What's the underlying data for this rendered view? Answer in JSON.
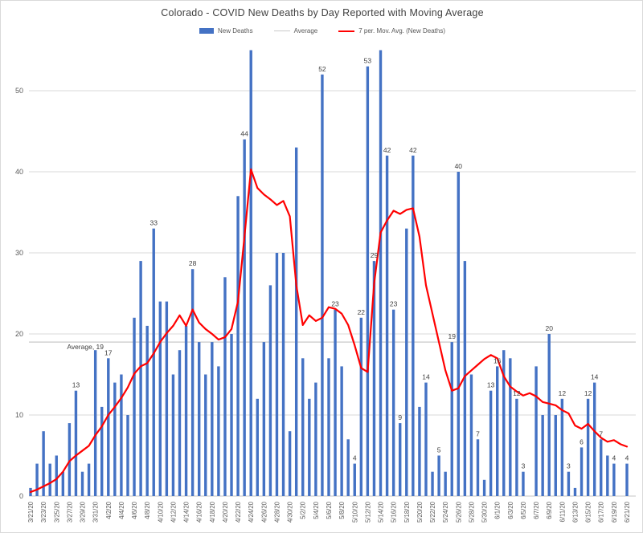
{
  "chart_data": {
    "type": "bar",
    "title": "Colorado - COVID New Deaths by Day Reported with Moving Average",
    "xlabel": "",
    "ylabel": "",
    "ylim": [
      0,
      55
    ],
    "yticks": [
      0,
      10,
      20,
      30,
      40,
      50
    ],
    "xtick_every": 2,
    "grid": true,
    "legend_position": "top",
    "average_value": 19,
    "average_label": "Average, 19",
    "categories": [
      "3/21/20",
      "3/22/20",
      "3/23/20",
      "3/24/20",
      "3/25/20",
      "3/26/20",
      "3/27/20",
      "3/28/20",
      "3/29/20",
      "3/30/20",
      "3/31/20",
      "4/1/20",
      "4/2/20",
      "4/3/20",
      "4/4/20",
      "4/5/20",
      "4/6/20",
      "4/7/20",
      "4/8/20",
      "4/9/20",
      "4/10/20",
      "4/11/20",
      "4/12/20",
      "4/13/20",
      "4/14/20",
      "4/15/20",
      "4/16/20",
      "4/17/20",
      "4/18/20",
      "4/19/20",
      "4/20/20",
      "4/21/20",
      "4/22/20",
      "4/23/20",
      "4/24/20",
      "4/25/20",
      "4/26/20",
      "4/27/20",
      "4/28/20",
      "4/29/20",
      "4/30/20",
      "5/1/20",
      "5/2/20",
      "5/3/20",
      "5/4/20",
      "5/5/20",
      "5/6/20",
      "5/7/20",
      "5/8/20",
      "5/9/20",
      "5/10/20",
      "5/11/20",
      "5/12/20",
      "5/13/20",
      "5/14/20",
      "5/15/20",
      "5/16/20",
      "5/17/20",
      "5/18/20",
      "5/19/20",
      "5/20/20",
      "5/21/20",
      "5/22/20",
      "5/23/20",
      "5/24/20",
      "5/25/20",
      "5/26/20",
      "5/27/20",
      "5/28/20",
      "5/29/20",
      "5/30/20",
      "5/31/20",
      "6/1/20",
      "6/2/20",
      "6/3/20",
      "6/4/20",
      "6/5/20",
      "6/6/20",
      "6/7/20",
      "6/8/20",
      "6/9/20",
      "6/10/20",
      "6/11/20",
      "6/12/20",
      "6/13/20",
      "6/14/20",
      "6/15/20",
      "6/16/20",
      "6/17/20",
      "6/18/20",
      "6/19/20",
      "6/20/20",
      "6/21/20"
    ],
    "series": [
      {
        "name": "New Deaths",
        "color": "#4472c4",
        "values": [
          1,
          4,
          8,
          4,
          5,
          3,
          9,
          13,
          3,
          4,
          18,
          11,
          17,
          14,
          15,
          10,
          22,
          29,
          21,
          33,
          24,
          24,
          15,
          18,
          21,
          28,
          19,
          15,
          19,
          16,
          27,
          20,
          37,
          44,
          55,
          12,
          19,
          26,
          30,
          30,
          8,
          43,
          17,
          12,
          14,
          52,
          17,
          23,
          16,
          7,
          4,
          22,
          53,
          29,
          55,
          42,
          23,
          9,
          33,
          42,
          11,
          14,
          3,
          5,
          3,
          19,
          40,
          29,
          15,
          7,
          2,
          13,
          16,
          18,
          17,
          12,
          3,
          0,
          16,
          10,
          20,
          10,
          12,
          3,
          1,
          6,
          12,
          14,
          7,
          5,
          4,
          0,
          4
        ],
        "data_labels": [
          "",
          "",
          "",
          "",
          "",
          "",
          "",
          "13",
          "",
          "",
          "",
          "",
          "17",
          "",
          "",
          "",
          "",
          "",
          "",
          "33",
          "",
          "",
          "",
          "",
          "",
          "28",
          "",
          "",
          "",
          "",
          "",
          "",
          "",
          "44",
          "",
          "",
          "",
          "",
          "",
          "",
          "",
          "",
          "",
          "",
          "",
          "52",
          "",
          "23",
          "",
          "",
          "4",
          "22",
          "53",
          "29",
          "",
          "42",
          "23",
          "9",
          "",
          "42",
          "",
          "14",
          "",
          "5",
          "",
          "19",
          "40",
          "",
          "",
          "7",
          "",
          "13",
          "16",
          "",
          "",
          "12",
          "3",
          "",
          "",
          "",
          "20",
          "",
          "12",
          "3",
          "",
          "6",
          "12",
          "14",
          "7",
          "",
          "4",
          "",
          "4"
        ]
      },
      {
        "name": "Average",
        "color": "#c9c9c9",
        "values": "constant 19"
      },
      {
        "name": "7 per. Mov. Avg. (New Deaths)",
        "color": "#ff0000",
        "values": [
          0.5,
          0.8,
          1.2,
          1.6,
          2.1,
          3.0,
          4.3,
          5.0,
          5.6,
          6.2,
          7.5,
          8.6,
          10.0,
          11.0,
          12.1,
          13.4,
          15.1,
          16.0,
          16.4,
          17.6,
          19.0,
          20.1,
          21.0,
          22.3,
          21.0,
          23.0,
          21.4,
          20.6,
          20.0,
          19.3,
          19.6,
          20.6,
          24.0,
          32.0,
          40.3,
          38.0,
          37.2,
          36.6,
          35.9,
          36.4,
          34.5,
          26.0,
          21.1,
          22.3,
          21.6,
          22.0,
          23.3,
          23.1,
          22.5,
          21.1,
          18.6,
          15.8,
          15.3,
          26.2,
          32.5,
          34.0,
          35.2,
          34.8,
          35.3,
          35.5,
          32.0,
          26.0,
          22.5,
          19.0,
          15.5,
          13.0,
          13.3,
          14.8,
          15.5,
          16.2,
          16.9,
          17.4,
          17.0,
          14.8,
          13.5,
          12.9,
          12.4,
          12.7,
          12.3,
          11.6,
          11.4,
          11.2,
          10.6,
          10.2,
          8.7,
          8.3,
          8.9,
          8.0,
          7.2,
          6.7,
          6.9,
          6.4,
          6.1
        ]
      }
    ]
  },
  "legend": {
    "new_deaths": "New Deaths",
    "average": "Average",
    "mov_avg": "7 per. Mov. Avg. (New Deaths)"
  },
  "colors": {
    "bar": "#4472c4",
    "moving_avg": "#ff0000",
    "average_line": "#c9c9c9",
    "gridline": "#d9d9d9",
    "axis_text": "#595959",
    "label_text": "#404040"
  }
}
